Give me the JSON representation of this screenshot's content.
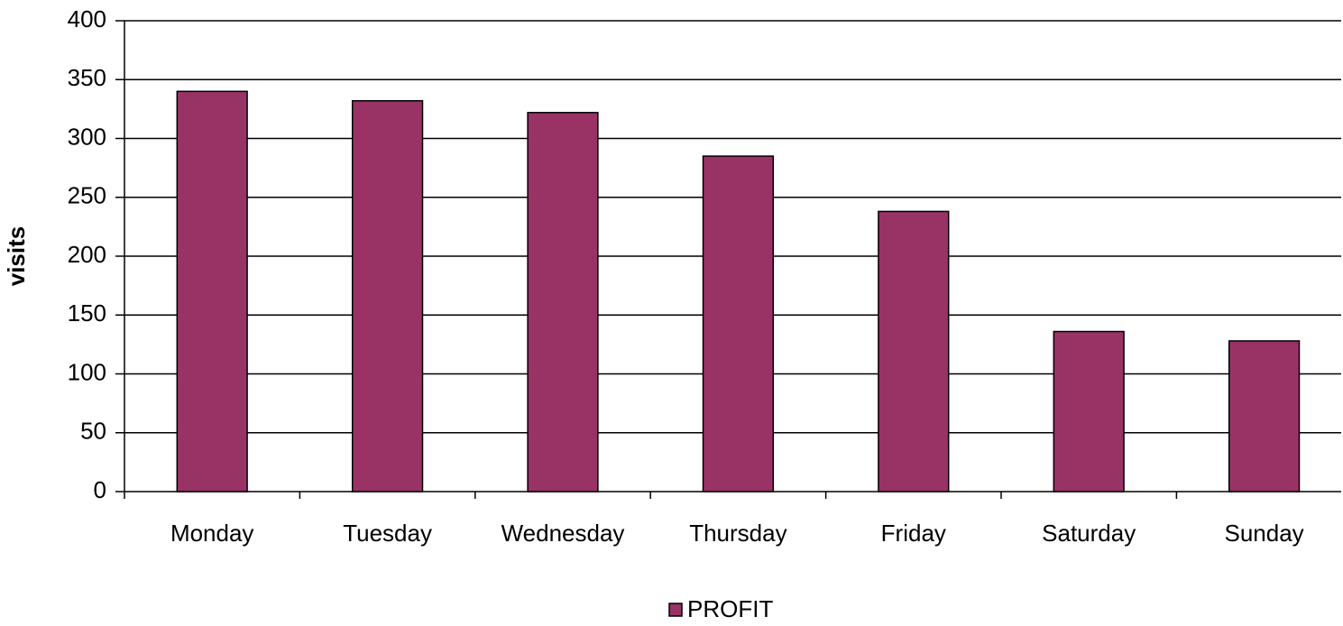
{
  "chart_data": {
    "type": "bar",
    "y_label": "visits",
    "categories": [
      "Monday",
      "Tuesday",
      "Wednesday",
      "Thursday",
      "Friday",
      "Saturday",
      "Sunday"
    ],
    "series": [
      {
        "name": "PROFIT",
        "color": "#993366",
        "values": [
          340,
          332,
          322,
          285,
          238,
          136,
          128
        ]
      }
    ],
    "ylim": [
      0,
      400
    ],
    "yticks": [
      0,
      50,
      100,
      150,
      200,
      250,
      300,
      350,
      400
    ],
    "grid": true,
    "legend": "bottom"
  }
}
